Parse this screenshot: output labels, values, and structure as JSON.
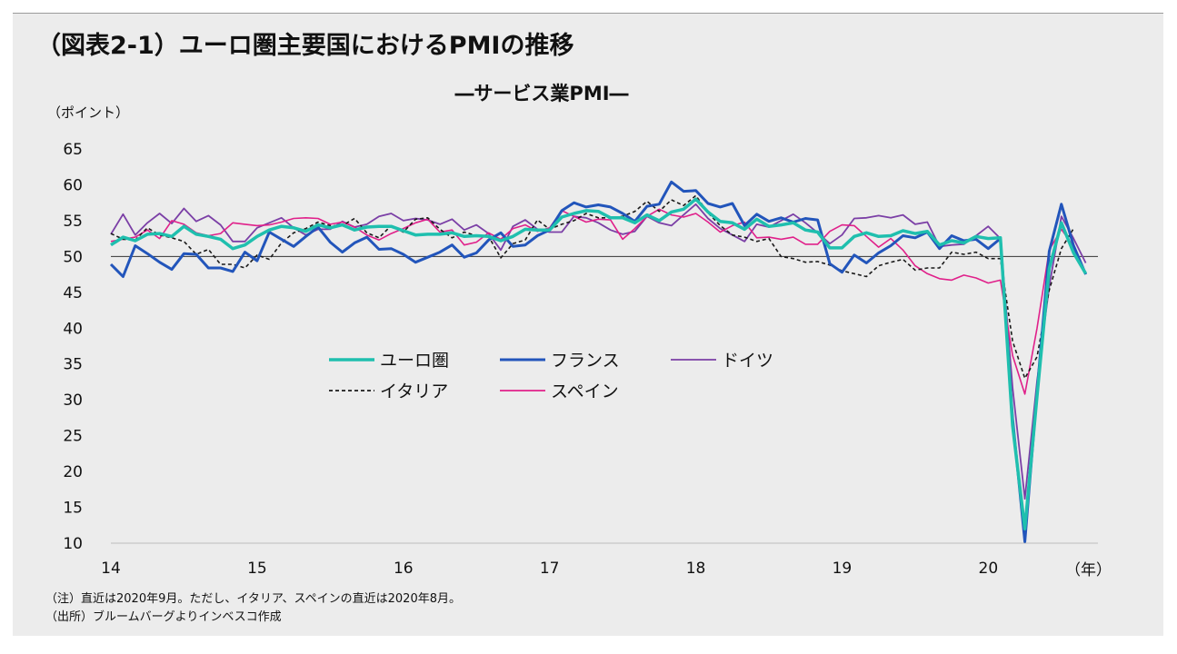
{
  "title": "（図表2-1）ユーロ圏主要国におけるPMIの推移",
  "footnotes": {
    "note": "（注）直近は2020年9月。ただし、イタリア、スペインの直近は2020年8月。",
    "source": "（出所）ブルームバーグよりインベスコ作成"
  },
  "chart_data": {
    "type": "line",
    "title": "―サービス業PMI―",
    "ylabel": "（ポイント）",
    "xlabel": "（年）",
    "ylim": [
      10,
      65
    ],
    "yticks": [
      10,
      15,
      20,
      25,
      30,
      35,
      40,
      45,
      50,
      55,
      60,
      65
    ],
    "xlim": [
      2014,
      2020.75
    ],
    "xticks": [
      {
        "value": 2014,
        "label": "14"
      },
      {
        "value": 2015,
        "label": "15"
      },
      {
        "value": 2016,
        "label": "16"
      },
      {
        "value": 2017,
        "label": "17"
      },
      {
        "value": 2018,
        "label": "18"
      },
      {
        "value": 2019,
        "label": "19"
      },
      {
        "value": 2020,
        "label": "20"
      }
    ],
    "reference_line": 50,
    "grid": false,
    "legend_position": "center",
    "series": [
      {
        "name": "ユーロ圏",
        "color": "#1fbfae",
        "width": 3.5,
        "dash": "",
        "start": 2014,
        "values": [
          51.6,
          52.7,
          52.2,
          53.1,
          53.2,
          52.8,
          54.2,
          53.1,
          52.8,
          52.4,
          51.1,
          51.6,
          52.8,
          53.7,
          54.2,
          54.0,
          53.5,
          54.4,
          54.0,
          54.4,
          53.7,
          54.1,
          54.2,
          54.2,
          53.6,
          53.0,
          53.1,
          53.1,
          53.3,
          52.8,
          52.9,
          52.8,
          52.2,
          52.8,
          53.8,
          53.7,
          53.7,
          55.5,
          56.0,
          56.4,
          56.3,
          55.4,
          55.4,
          54.7,
          55.8,
          55.0,
          56.2,
          56.6,
          58.0,
          56.2,
          54.9,
          54.7,
          53.8,
          55.2,
          54.2,
          54.4,
          54.7,
          53.7,
          53.4,
          51.2,
          51.2,
          52.8,
          53.3,
          52.8,
          52.9,
          53.6,
          53.2,
          53.5,
          51.6,
          52.2,
          51.9,
          52.8,
          52.5,
          52.6,
          26.4,
          12.0,
          30.5,
          48.3,
          54.7,
          50.5,
          47.6
        ]
      },
      {
        "name": "フランス",
        "color": "#2255bb",
        "width": 3,
        "dash": "",
        "start": 2014,
        "values": [
          48.9,
          47.2,
          51.5,
          50.4,
          49.2,
          48.2,
          50.4,
          50.3,
          48.4,
          48.4,
          47.9,
          50.6,
          49.4,
          53.4,
          52.4,
          51.4,
          52.8,
          54.1,
          52.0,
          50.6,
          51.9,
          52.7,
          51.0,
          51.1,
          50.3,
          49.2,
          49.9,
          50.6,
          51.6,
          49.9,
          50.5,
          52.3,
          53.3,
          51.4,
          51.6,
          52.9,
          53.7,
          56.4,
          57.5,
          56.9,
          57.2,
          56.9,
          56.0,
          54.9,
          57.0,
          57.3,
          60.4,
          59.1,
          59.2,
          57.4,
          56.9,
          57.4,
          54.3,
          55.9,
          54.9,
          55.4,
          54.8,
          55.3,
          55.1,
          49.0,
          47.8,
          50.2,
          49.1,
          50.5,
          51.5,
          52.9,
          52.6,
          53.4,
          51.1,
          52.9,
          52.2,
          52.4,
          51.1,
          52.5,
          27.4,
          10.2,
          31.1,
          50.7,
          57.3,
          51.5,
          47.5
        ]
      },
      {
        "name": "ドイツ",
        "color": "#7b3fa6",
        "width": 1.8,
        "dash": "",
        "start": 2014,
        "values": [
          53.1,
          55.9,
          53.0,
          54.7,
          56.0,
          54.6,
          56.7,
          54.9,
          55.7,
          54.4,
          52.1,
          52.1,
          54.0,
          54.7,
          55.4,
          54.0,
          53.0,
          53.8,
          53.8,
          54.9,
          54.1,
          54.5,
          55.6,
          56.0,
          55.0,
          55.3,
          55.1,
          54.5,
          55.2,
          53.7,
          54.4,
          53.2,
          50.9,
          54.2,
          55.1,
          53.8,
          53.4,
          53.4,
          55.6,
          55.4,
          54.7,
          53.7,
          53.1,
          53.5,
          55.6,
          54.7,
          54.3,
          55.8,
          57.3,
          55.3,
          53.9,
          53.0,
          52.1,
          54.5,
          54.1,
          55.0,
          55.9,
          54.7,
          53.3,
          51.8,
          53.0,
          55.3,
          55.4,
          55.7,
          55.4,
          55.8,
          54.5,
          54.8,
          51.4,
          51.6,
          51.7,
          52.9,
          54.2,
          52.5,
          31.7,
          16.2,
          32.6,
          45.8,
          55.6,
          52.5,
          49.1
        ]
      },
      {
        "name": "イタリア",
        "color": "#1a1a1a",
        "width": 1.6,
        "dash": "4,3",
        "start": 2014,
        "values": [
          53.2,
          52.4,
          52.3,
          54.0,
          53.0,
          52.6,
          52.1,
          50.3,
          51.0,
          48.9,
          48.9,
          48.4,
          50.2,
          49.6,
          51.9,
          53.3,
          53.9,
          54.8,
          54.3,
          54.3,
          55.3,
          53.3,
          52.6,
          54.3,
          53.4,
          55.2,
          55.4,
          53.8,
          52.6,
          53.4,
          52.9,
          52.8,
          49.8,
          51.8,
          52.3,
          55.1,
          53.8,
          54.5,
          55.0,
          56.0,
          55.4,
          55.4,
          55.6,
          56.3,
          57.7,
          56.3,
          57.9,
          57.1,
          58.5,
          56.1,
          54.3,
          53.0,
          52.7,
          52.1,
          52.5,
          50.0,
          49.7,
          49.2,
          49.3,
          48.8,
          48.0,
          47.6,
          47.2,
          48.7,
          49.2,
          49.6,
          48.1,
          48.4,
          48.4,
          50.6,
          50.3,
          50.6,
          49.7,
          49.7,
          38.2,
          33.0,
          36.0,
          45.3,
          51.1,
          53.9
        ]
      },
      {
        "name": "スペイン",
        "color": "#e0208a",
        "width": 1.6,
        "dash": "",
        "start": 2014,
        "values": [
          52.1,
          52.4,
          52.7,
          53.7,
          52.5,
          55.0,
          54.5,
          53.3,
          52.9,
          53.2,
          54.7,
          54.5,
          54.3,
          54.4,
          54.8,
          55.3,
          55.4,
          55.3,
          54.5,
          54.8,
          54.1,
          53.0,
          52.3,
          53.2,
          53.9,
          54.7,
          55.2,
          53.4,
          53.7,
          51.6,
          52.0,
          53.3,
          52.4,
          53.9,
          54.4,
          53.5,
          54.0,
          56.4,
          55.6,
          54.8,
          55.2,
          55.1,
          52.4,
          53.9,
          55.6,
          56.6,
          55.8,
          55.5,
          56.0,
          54.8,
          53.4,
          54.3,
          54.8,
          52.6,
          52.7,
          52.4,
          52.7,
          51.7,
          51.7,
          53.5,
          54.4,
          54.3,
          52.8,
          51.3,
          52.5,
          50.9,
          48.7,
          47.6,
          46.9,
          46.7,
          47.4,
          47.0,
          46.3,
          46.7,
          36.2,
          30.8,
          40.0,
          50.9,
          53.8,
          51.4
        ]
      }
    ]
  }
}
